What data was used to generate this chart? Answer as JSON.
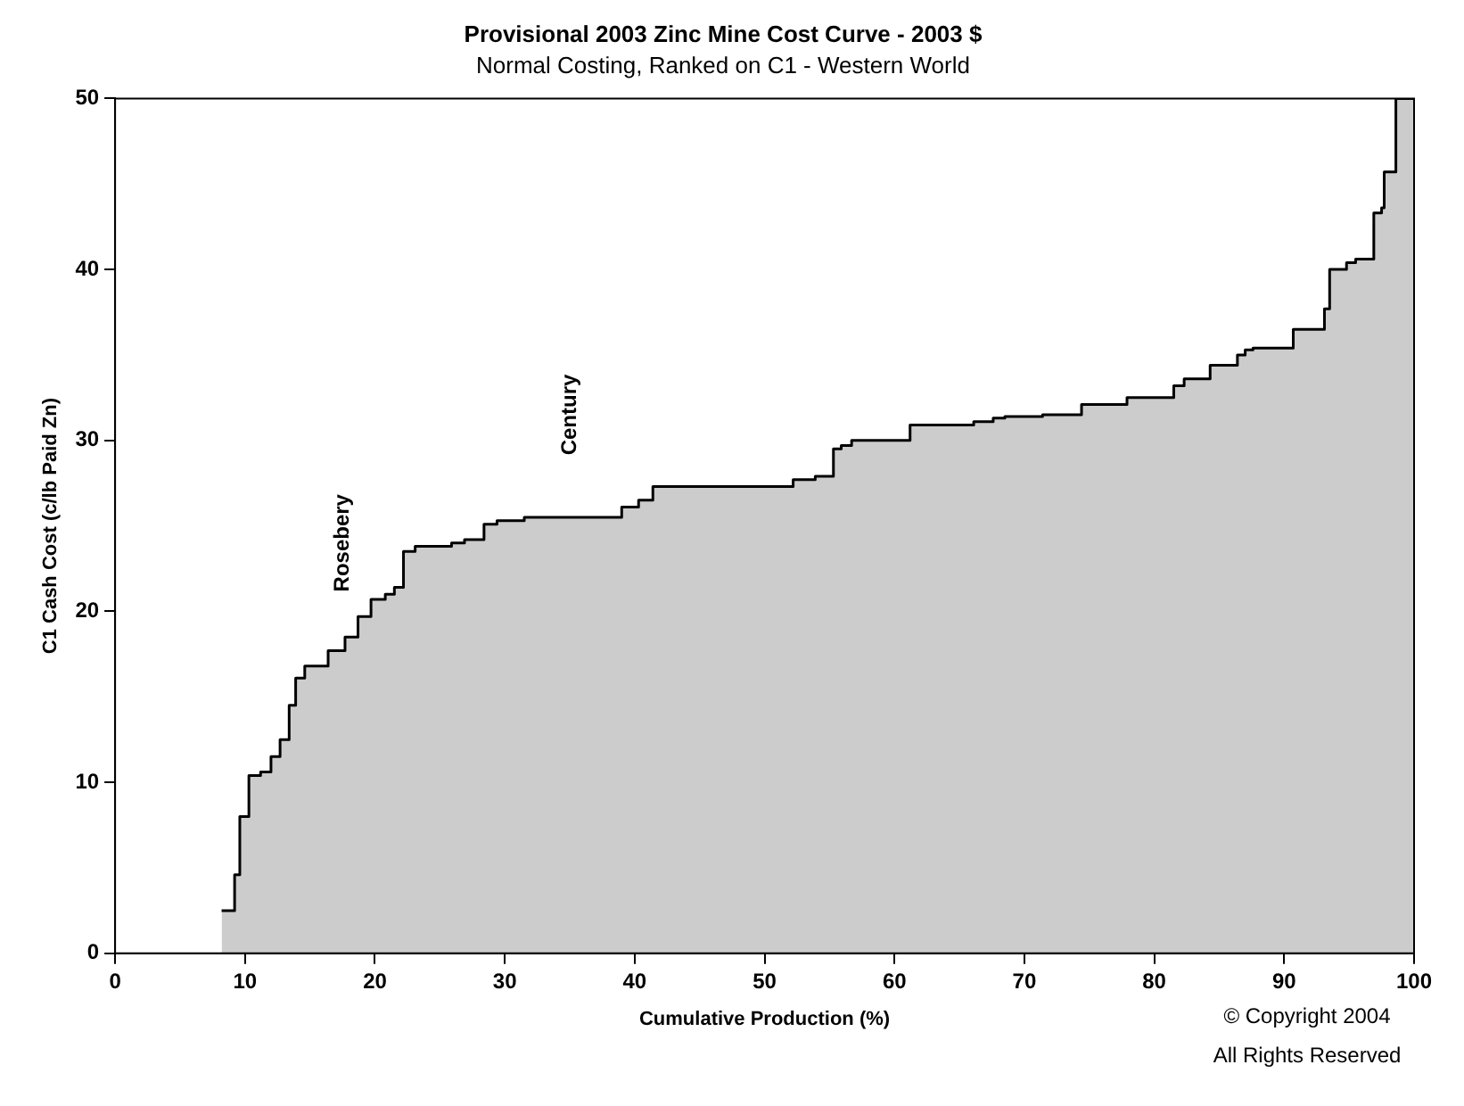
{
  "chart_data": {
    "type": "area",
    "title": "Provisional 2003 Zinc Mine Cost Curve - 2003 $",
    "subtitle": "Normal Costing, Ranked on C1 - Western World",
    "xlabel": "Cumulative Production (%)",
    "ylabel": "C1 Cash Cost (c/lb Paid Zn)",
    "series": [
      {
        "color": "#000000",
        "x": [
          8.2,
          9.2,
          9.2,
          9.6,
          9.6,
          10.3,
          10.3,
          11.2,
          11.2,
          12.0,
          12.0,
          12.7,
          12.7,
          13.4,
          13.4,
          13.9,
          13.9,
          14.6,
          14.6,
          16.4,
          16.4,
          17.7,
          17.7,
          18.7,
          18.7,
          19.7,
          19.7,
          20.8,
          20.8,
          21.5,
          21.5,
          22.2,
          22.2,
          23.1,
          23.1,
          25.9,
          25.9,
          26.9,
          26.9,
          28.4,
          28.4,
          29.4,
          29.4,
          31.5,
          31.5,
          39.0,
          39.0,
          40.3,
          40.3,
          41.4,
          41.4,
          52.2,
          52.2,
          53.9,
          53.9,
          55.3,
          55.3,
          55.9,
          55.9,
          56.7,
          56.7,
          61.2,
          61.2,
          66.1,
          66.1,
          67.6,
          67.6,
          68.5,
          68.5,
          71.4,
          71.4,
          74.4,
          74.4,
          77.9,
          77.9,
          81.5,
          81.5,
          82.3,
          82.3,
          84.3,
          84.3,
          86.4,
          86.4,
          87.0,
          87.0,
          87.6,
          87.6,
          90.7,
          90.7,
          93.1,
          93.1,
          93.5,
          93.5,
          94.8,
          94.8,
          95.5,
          95.5,
          96.9,
          96.9,
          97.5,
          97.5,
          97.7,
          97.7,
          98.6,
          98.6,
          100
        ],
        "values": [
          2.5,
          2.5,
          4.6,
          4.6,
          8.0,
          8.0,
          10.4,
          10.4,
          10.6,
          10.6,
          11.5,
          11.5,
          12.5,
          12.5,
          14.5,
          14.5,
          16.1,
          16.1,
          16.8,
          16.8,
          17.7,
          17.7,
          18.5,
          18.5,
          19.7,
          19.7,
          20.7,
          20.7,
          21.0,
          21.0,
          21.4,
          21.4,
          23.5,
          23.5,
          23.8,
          23.8,
          24.0,
          24.0,
          24.2,
          24.2,
          25.1,
          25.1,
          25.3,
          25.3,
          25.5,
          25.5,
          26.1,
          26.1,
          26.5,
          26.5,
          27.3,
          27.3,
          27.7,
          27.7,
          27.9,
          27.9,
          29.5,
          29.5,
          29.7,
          29.7,
          30.0,
          30.0,
          30.9,
          30.9,
          31.1,
          31.1,
          31.3,
          31.3,
          31.4,
          31.4,
          31.5,
          31.5,
          32.1,
          32.1,
          32.5,
          32.5,
          33.2,
          33.2,
          33.6,
          33.6,
          34.4,
          34.4,
          35.0,
          35.0,
          35.3,
          35.3,
          35.4,
          35.4,
          36.5,
          36.5,
          37.7,
          37.7,
          40.0,
          40.0,
          40.4,
          40.4,
          40.6,
          40.6,
          43.3,
          43.3,
          43.6,
          43.6,
          45.7,
          45.7,
          50,
          50
        ]
      }
    ],
    "xlim": [
      0,
      100
    ],
    "xticks": [
      0,
      10,
      20,
      30,
      40,
      50,
      60,
      70,
      80,
      90,
      100
    ],
    "ylim": [
      0,
      50
    ],
    "yticks": [
      0,
      10,
      20,
      30,
      40,
      50
    ],
    "grid": false,
    "legend": false,
    "annotations": [
      "Rosebery",
      "Century",
      "© Copyright 2004",
      "All Rights Reserved"
    ]
  }
}
